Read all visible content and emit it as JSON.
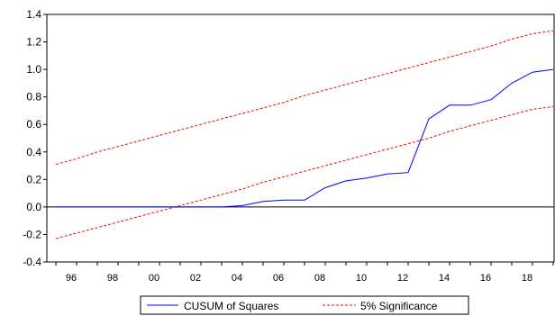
{
  "chart_data": {
    "type": "line",
    "x": [
      "1995",
      "1996",
      "1997",
      "1998",
      "1999",
      "2000",
      "2001",
      "2002",
      "2003",
      "2004",
      "2005",
      "2006",
      "2007",
      "2008",
      "2009",
      "2010",
      "2011",
      "2012",
      "2013",
      "2014",
      "2015",
      "2016",
      "2017",
      "2018",
      "2019"
    ],
    "x_tick_labels": [
      "96",
      "98",
      "00",
      "02",
      "04",
      "06",
      "08",
      "10",
      "12",
      "14",
      "16",
      "18"
    ],
    "y_tick_labels": [
      "1.4",
      "1.2",
      "1.0",
      "0.8",
      "0.6",
      "0.4",
      "0.2",
      "0.0",
      "-0.2",
      "-0.4"
    ],
    "ylim": [
      -0.4,
      1.4
    ],
    "title": "",
    "xlabel": "",
    "ylabel": "",
    "grid": false,
    "legend": "bottom",
    "series": [
      {
        "name": "CUSUM of Squares",
        "color": "#0000ff",
        "style": "solid",
        "values": [
          0.0,
          0.0,
          0.0,
          0.0,
          0.0,
          0.0,
          0.0,
          0.0,
          0.0,
          0.01,
          0.04,
          0.05,
          0.05,
          0.14,
          0.19,
          0.21,
          0.24,
          0.25,
          0.64,
          0.74,
          0.74,
          0.78,
          0.9,
          0.98,
          1.0
        ]
      },
      {
        "name": "5% Significance",
        "color": "#ff0000",
        "style": "dashed",
        "upper": [
          0.31,
          0.35,
          0.4,
          0.44,
          0.48,
          0.52,
          0.56,
          0.6,
          0.64,
          0.68,
          0.72,
          0.76,
          0.81,
          0.85,
          0.89,
          0.93,
          0.97,
          1.01,
          1.05,
          1.09,
          1.13,
          1.17,
          1.22,
          1.26,
          1.28
        ],
        "lower": [
          -0.23,
          -0.19,
          -0.15,
          -0.11,
          -0.07,
          -0.03,
          0.01,
          0.05,
          0.09,
          0.13,
          0.18,
          0.22,
          0.26,
          0.3,
          0.34,
          0.38,
          0.42,
          0.46,
          0.5,
          0.55,
          0.59,
          0.63,
          0.67,
          0.71,
          0.73
        ]
      }
    ]
  }
}
